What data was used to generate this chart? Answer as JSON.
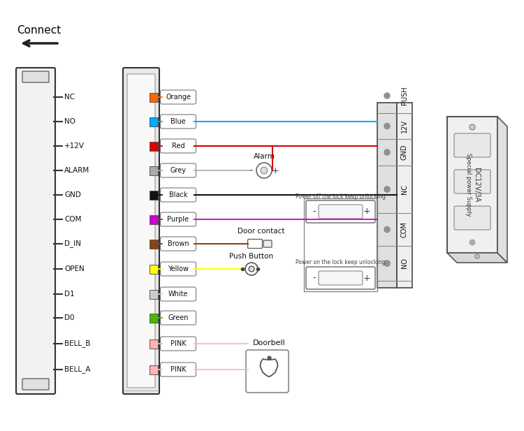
{
  "bg_color": "#ffffff",
  "terminal_labels": [
    "BELL_A",
    "BELL_B",
    "D0",
    "D1",
    "OPEN",
    "D_IN",
    "COM",
    "GND",
    "ALARM",
    "+12V",
    "NO",
    "NC"
  ],
  "wire_colors": [
    "#ffb3b3",
    "#ffb3b3",
    "#44bb00",
    "#cccccc",
    "#ffff00",
    "#8B4513",
    "#cc00cc",
    "#111111",
    "#aaaaaa",
    "#dd0000",
    "#00aaff",
    "#ff6600"
  ],
  "wire_labels": [
    "PINK",
    "PINK",
    "Green",
    "White",
    "Yellow",
    "Brown",
    "Purple",
    "Black",
    "Grey",
    "Red",
    "Blue",
    "Orange"
  ],
  "right_terminal_labels": [
    "NO",
    "COM",
    "NC",
    "GND",
    "12V",
    "PUSH"
  ],
  "lock_label1": "Power on the lock keep unlocking",
  "lock_label2": "Power off the lock keep unlocking"
}
